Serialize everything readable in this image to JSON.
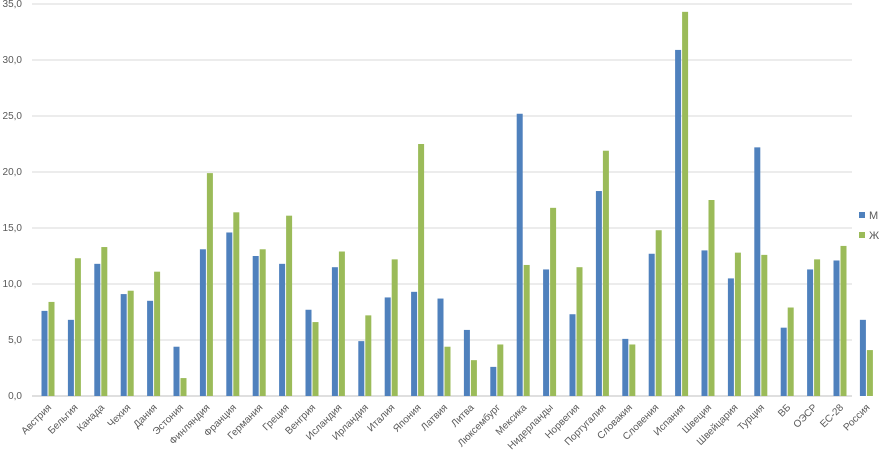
{
  "chart_data": {
    "type": "bar",
    "title": "",
    "xlabel": "",
    "ylabel": "",
    "ylim": [
      0,
      35
    ],
    "y_ticks": [
      "0,0",
      "5,0",
      "10,0",
      "15,0",
      "20,0",
      "25,0",
      "30,0",
      "35,0"
    ],
    "grid": true,
    "legend_position": "right",
    "categories": [
      "Австрия",
      "Бельгия",
      "Канада",
      "Чехия",
      "Дания",
      "Эстония",
      "Финляндия",
      "Франция",
      "Германия",
      "Греция",
      "Венгрия",
      "Исландия",
      "Ирландия",
      "Италия",
      "Япония",
      "Латвия",
      "Литва",
      "Люксембург",
      "Мексика",
      "Нидерланды",
      "Норвегия",
      "Португалия",
      "Словакия",
      "Словения",
      "Испания",
      "Швеция",
      "Швейцария",
      "Турция",
      "ВБ",
      "ОЭСР",
      "ЕС-28",
      "Россия"
    ],
    "series": [
      {
        "name": "М",
        "color": "#4f81bd",
        "values": [
          7.6,
          6.8,
          11.8,
          9.1,
          8.5,
          4.4,
          13.1,
          14.6,
          12.5,
          11.8,
          7.7,
          11.5,
          4.9,
          8.8,
          9.3,
          8.7,
          5.9,
          2.6,
          25.2,
          11.3,
          7.3,
          18.3,
          5.1,
          12.7,
          30.9,
          13.0,
          10.5,
          22.2,
          6.1,
          11.3,
          12.1,
          6.8
        ]
      },
      {
        "name": "Ж",
        "color": "#9bbb59",
        "values": [
          8.4,
          12.3,
          13.3,
          9.4,
          11.1,
          1.6,
          19.9,
          16.4,
          13.1,
          16.1,
          6.6,
          12.9,
          7.2,
          12.2,
          22.5,
          4.4,
          3.2,
          4.6,
          11.7,
          16.8,
          11.5,
          21.9,
          4.6,
          14.8,
          34.3,
          17.5,
          12.8,
          12.6,
          7.9,
          12.2,
          13.4,
          4.1
        ]
      }
    ]
  }
}
